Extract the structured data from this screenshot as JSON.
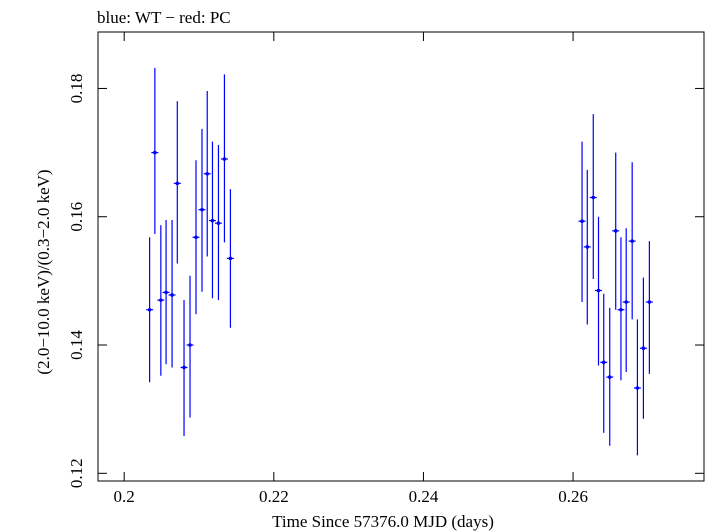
{
  "chart_data": {
    "type": "scatter",
    "title": "blue: WT − red: PC",
    "xlabel": "Time Since 57376.0 MJD (days)",
    "ylabel": "(2.0−10.0 keV)/(0.3−2.0 keV)",
    "xlim": [
      0.1965,
      0.2775
    ],
    "ylim": [
      0.1188,
      0.1888
    ],
    "xticks": [
      0.2,
      0.22,
      0.24,
      0.26
    ],
    "xtick_labels": [
      "0.2",
      "0.22",
      "0.24",
      "0.26"
    ],
    "yticks": [
      0.12,
      0.14,
      0.16,
      0.18
    ],
    "ytick_labels": [
      "0.12",
      "0.14",
      "0.16",
      "0.18"
    ],
    "grid": false,
    "colors": {
      "WT": "#0000ff",
      "frame": "#000000"
    },
    "series": [
      {
        "color": "#0000ff",
        "points": [
          {
            "x": 0.2034,
            "y": 0.1455,
            "ylo": 0.1342,
            "yhi": 0.1568
          },
          {
            "x": 0.2041,
            "y": 0.17,
            "ylo": 0.1573,
            "yhi": 0.1832
          },
          {
            "x": 0.2049,
            "y": 0.147,
            "ylo": 0.1352,
            "yhi": 0.1587
          },
          {
            "x": 0.2056,
            "y": 0.1482,
            "ylo": 0.137,
            "yhi": 0.1595
          },
          {
            "x": 0.2064,
            "y": 0.1478,
            "ylo": 0.1365,
            "yhi": 0.1595
          },
          {
            "x": 0.2071,
            "y": 0.1652,
            "ylo": 0.1527,
            "yhi": 0.178
          },
          {
            "x": 0.208,
            "y": 0.1365,
            "ylo": 0.1258,
            "yhi": 0.147
          },
          {
            "x": 0.2088,
            "y": 0.14,
            "ylo": 0.1287,
            "yhi": 0.1508
          },
          {
            "x": 0.2096,
            "y": 0.1568,
            "ylo": 0.1448,
            "yhi": 0.1688
          },
          {
            "x": 0.2104,
            "y": 0.1611,
            "ylo": 0.1483,
            "yhi": 0.1737
          },
          {
            "x": 0.2111,
            "y": 0.1667,
            "ylo": 0.1538,
            "yhi": 0.1796
          },
          {
            "x": 0.2118,
            "y": 0.1594,
            "ylo": 0.1473,
            "yhi": 0.1717
          },
          {
            "x": 0.2126,
            "y": 0.159,
            "ylo": 0.147,
            "yhi": 0.1712
          },
          {
            "x": 0.2134,
            "y": 0.169,
            "ylo": 0.156,
            "yhi": 0.1822
          },
          {
            "x": 0.2142,
            "y": 0.1535,
            "ylo": 0.1427,
            "yhi": 0.1643
          },
          {
            "x": 0.2612,
            "y": 0.1593,
            "ylo": 0.1467,
            "yhi": 0.1717
          },
          {
            "x": 0.2619,
            "y": 0.1553,
            "ylo": 0.1432,
            "yhi": 0.1673
          },
          {
            "x": 0.2627,
            "y": 0.163,
            "ylo": 0.1503,
            "yhi": 0.176
          },
          {
            "x": 0.2634,
            "y": 0.1485,
            "ylo": 0.1368,
            "yhi": 0.16
          },
          {
            "x": 0.2641,
            "y": 0.1373,
            "ylo": 0.1263,
            "yhi": 0.148
          },
          {
            "x": 0.2649,
            "y": 0.135,
            "ylo": 0.1243,
            "yhi": 0.1458
          },
          {
            "x": 0.2657,
            "y": 0.1578,
            "ylo": 0.1455,
            "yhi": 0.17
          },
          {
            "x": 0.2664,
            "y": 0.1455,
            "ylo": 0.1345,
            "yhi": 0.1568
          },
          {
            "x": 0.2671,
            "y": 0.1467,
            "ylo": 0.1358,
            "yhi": 0.1582
          },
          {
            "x": 0.2679,
            "y": 0.1562,
            "ylo": 0.144,
            "yhi": 0.1685
          },
          {
            "x": 0.2686,
            "y": 0.1333,
            "ylo": 0.1228,
            "yhi": 0.144
          },
          {
            "x": 0.2694,
            "y": 0.1395,
            "ylo": 0.1285,
            "yhi": 0.1505
          },
          {
            "x": 0.2702,
            "y": 0.1467,
            "ylo": 0.1355,
            "yhi": 0.1562
          }
        ]
      }
    ]
  }
}
